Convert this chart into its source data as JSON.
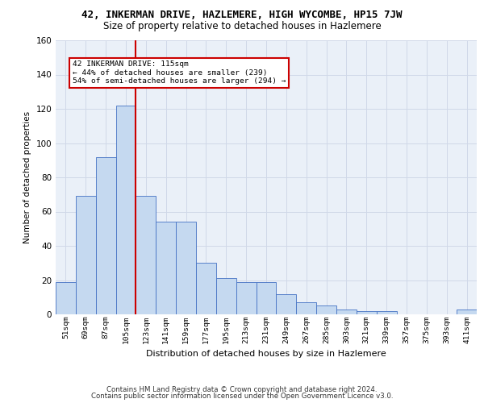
{
  "title": "42, INKERMAN DRIVE, HAZLEMERE, HIGH WYCOMBE, HP15 7JW",
  "subtitle": "Size of property relative to detached houses in Hazlemere",
  "xlabel": "Distribution of detached houses by size in Hazlemere",
  "ylabel": "Number of detached properties",
  "categories": [
    "51sqm",
    "69sqm",
    "87sqm",
    "105sqm",
    "123sqm",
    "141sqm",
    "159sqm",
    "177sqm",
    "195sqm",
    "213sqm",
    "231sqm",
    "249sqm",
    "267sqm",
    "285sqm",
    "303sqm",
    "321sqm",
    "339sqm",
    "357sqm",
    "375sqm",
    "393sqm",
    "411sqm"
  ],
  "values": [
    19,
    69,
    92,
    122,
    69,
    54,
    54,
    30,
    21,
    19,
    19,
    12,
    7,
    5,
    3,
    2,
    2,
    0,
    0,
    0,
    3
  ],
  "bar_color": "#c5d9f0",
  "bar_edge_color": "#4472c4",
  "vline_x": 3.5,
  "vline_color": "#cc0000",
  "annotation_text_line1": "42 INKERMAN DRIVE: 115sqm",
  "annotation_text_line2": "← 44% of detached houses are smaller (239)",
  "annotation_text_line3": "54% of semi-detached houses are larger (294) →",
  "ylim": [
    0,
    160
  ],
  "yticks": [
    0,
    20,
    40,
    60,
    80,
    100,
    120,
    140,
    160
  ],
  "grid_color": "#d0d8e8",
  "bg_color": "#eaf0f8",
  "footer_line1": "Contains HM Land Registry data © Crown copyright and database right 2024.",
  "footer_line2": "Contains public sector information licensed under the Open Government Licence v3.0."
}
